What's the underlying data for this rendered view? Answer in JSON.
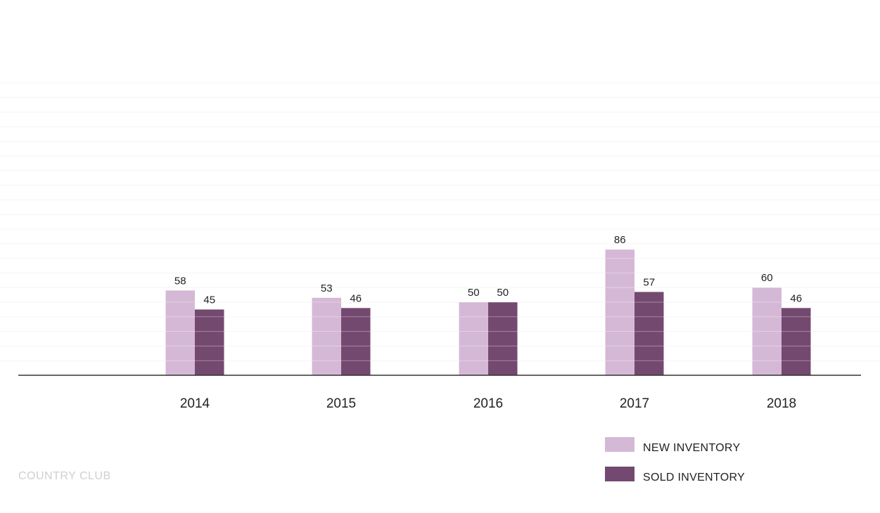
{
  "footer": {
    "label": "COUNTRY CLUB"
  },
  "colors": {
    "new": "#d5b8d6",
    "sold": "#744970",
    "axis": "#333333",
    "grid": "#f2f2f2",
    "text": "#222222"
  },
  "chart_data": {
    "type": "bar",
    "categories": [
      "2014",
      "2015",
      "2016",
      "2017",
      "2018"
    ],
    "series": [
      {
        "name": "NEW INVENTORY",
        "values": [
          58,
          53,
          50,
          86,
          60
        ]
      },
      {
        "name": "SOLD INVENTORY",
        "values": [
          45,
          46,
          50,
          57,
          46
        ]
      }
    ],
    "ylim": [
      0,
      200
    ],
    "grid": true,
    "legend_position": "bottom-right",
    "data_labels": true
  }
}
